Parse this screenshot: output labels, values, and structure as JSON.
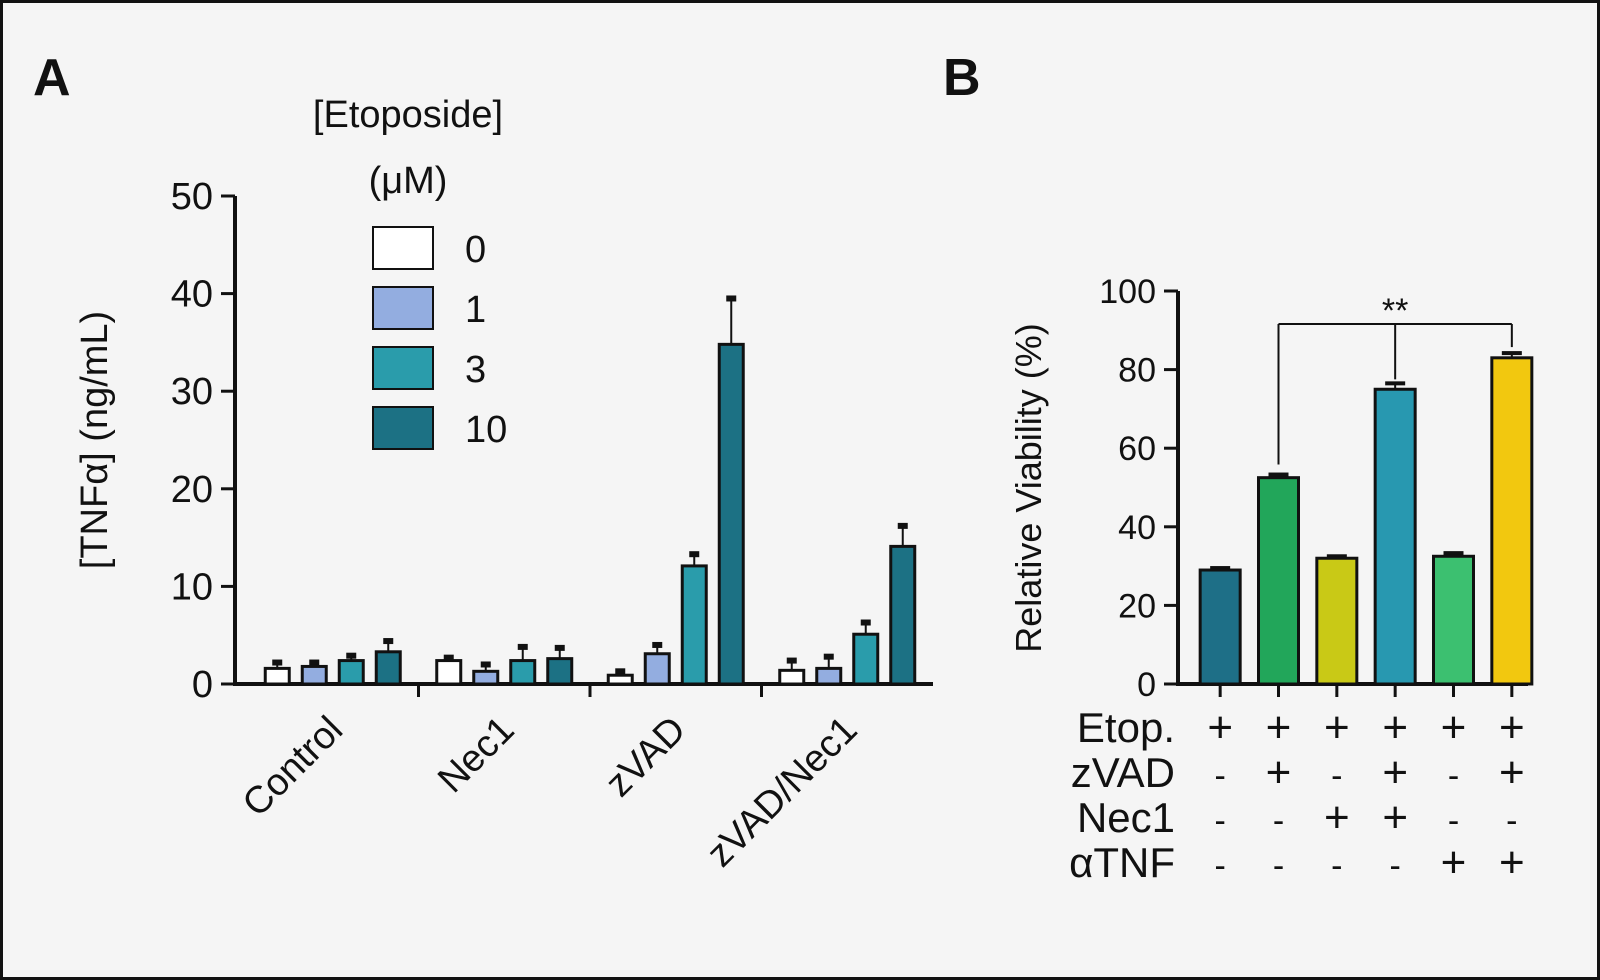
{
  "chart_data": [
    {
      "panel": "A",
      "type": "bar",
      "ylabel": "[TNFα] (ng/mL)",
      "ylim": [
        0,
        50
      ],
      "yticks": [
        "0",
        "10",
        "20",
        "30",
        "40",
        "50"
      ],
      "categories": [
        "Control",
        "Nec1",
        "zVAD",
        "zVAD/Nec1"
      ],
      "legend_title": [
        "[Etoposide]",
        "(μM)"
      ],
      "legend_position": "top-left",
      "series": [
        {
          "name": "0",
          "color": "#ffffff",
          "values": [
            1.6,
            2.4,
            0.9,
            1.4
          ],
          "errors": [
            0.6,
            0.3,
            0.4,
            1.0
          ]
        },
        {
          "name": "1",
          "color": "#93ade0",
          "values": [
            1.8,
            1.3,
            3.1,
            1.6
          ],
          "errors": [
            0.4,
            0.7,
            0.9,
            1.2
          ]
        },
        {
          "name": "3",
          "color": "#2a9cab",
          "values": [
            2.4,
            2.4,
            12.1,
            5.1
          ],
          "errors": [
            0.5,
            1.4,
            1.2,
            1.2
          ]
        },
        {
          "name": "10",
          "color": "#1c7184",
          "values": [
            3.3,
            2.6,
            34.8,
            14.1
          ],
          "errors": [
            1.1,
            1.1,
            4.7,
            2.1
          ]
        }
      ]
    },
    {
      "panel": "B",
      "type": "bar",
      "ylabel": "Relative Viability (%)",
      "ylim": [
        0,
        100
      ],
      "yticks": [
        "0",
        "20",
        "40",
        "60",
        "80",
        "100"
      ],
      "values": [
        29,
        52.5,
        32,
        75,
        32.5,
        83
      ],
      "errors": [
        0.5,
        0.8,
        0.5,
        1.5,
        0.8,
        1.2
      ],
      "colors": [
        "#1e6f87",
        "#22a65a",
        "#c9c916",
        "#2898b0",
        "#3cc070",
        "#f2c80f"
      ],
      "significance": {
        "label": "**",
        "bar_a": 2,
        "bar_b": 6,
        "also_from": 4
      },
      "conditions": [
        {
          "label": "Etop.",
          "signs": [
            "+",
            "+",
            "+",
            "+",
            "+",
            "+"
          ]
        },
        {
          "label": "zVAD",
          "signs": [
            "-",
            "+",
            "-",
            "+",
            "-",
            "+"
          ]
        },
        {
          "label": "Nec1",
          "signs": [
            "-",
            "-",
            "+",
            "+",
            "-",
            "-"
          ]
        },
        {
          "label": "αTNF",
          "signs": [
            "-",
            "-",
            "-",
            "-",
            "+",
            "+"
          ]
        }
      ]
    }
  ],
  "panel_labels": {
    "a": "A",
    "b": "B"
  },
  "colors": {
    "axis": "#111111",
    "background": "#f5f5f5",
    "border": "#111111"
  }
}
